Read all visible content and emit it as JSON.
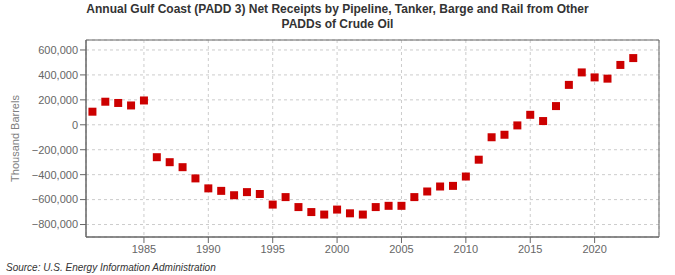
{
  "chart_data": {
    "type": "scatter",
    "title": "Annual Gulf Coast (PADD 3) Net Receipts by Pipeline, Tanker, Barge and Rail from Other\nPADDs of Crude Oil",
    "y_label": "Thousand Barrels",
    "annotations": [
      "Source: U.S. Energy Information Administration"
    ],
    "color": "#cc0000",
    "marker": "square",
    "grid": true,
    "xlim": [
      1980.5,
      2025
    ],
    "xticks": [
      1985,
      1990,
      1995,
      2000,
      2005,
      2010,
      2015,
      2020
    ],
    "ylim": [
      -900000,
      680000
    ],
    "yticks": [
      {
        "value": -800000,
        "label": "−800,000"
      },
      {
        "value": -600000,
        "label": "−600,000"
      },
      {
        "value": -400000,
        "label": "−400,000"
      },
      {
        "value": -200000,
        "label": "−200,000"
      },
      0,
      {
        "value": 200000,
        "label": "200,000"
      },
      {
        "value": 400000,
        "label": "400,000"
      },
      {
        "value": 600000,
        "label": "600,000"
      }
    ],
    "x": [
      1981,
      1982,
      1983,
      1984,
      1985,
      1986,
      1987,
      1988,
      1989,
      1990,
      1991,
      1992,
      1993,
      1994,
      1995,
      1996,
      1997,
      1998,
      1999,
      2000,
      2001,
      2002,
      2003,
      2004,
      2005,
      2006,
      2007,
      2008,
      2009,
      2010,
      2011,
      2012,
      2013,
      2014,
      2015,
      2016,
      2017,
      2018,
      2019,
      2020,
      2021,
      2022,
      2023
    ],
    "values": [
      105000,
      185000,
      175000,
      155000,
      195000,
      -260000,
      -300000,
      -340000,
      -430000,
      -510000,
      -530000,
      -565000,
      -540000,
      -555000,
      -640000,
      -580000,
      -660000,
      -700000,
      -720000,
      -680000,
      -710000,
      -720000,
      -660000,
      -650000,
      -650000,
      -580000,
      -535000,
      -495000,
      -490000,
      -415000,
      -280000,
      -100000,
      -80000,
      -5000,
      80000,
      30000,
      150000,
      320000,
      420000,
      380000,
      370000,
      480000,
      535000
    ]
  }
}
